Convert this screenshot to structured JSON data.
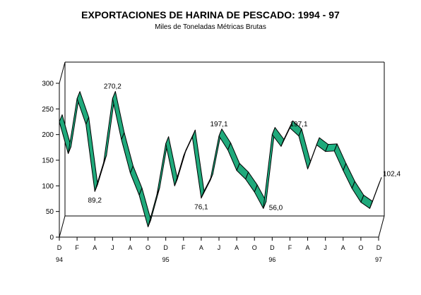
{
  "chart_data": {
    "type": "area",
    "title": "EXPORTACIONES DE HARINA DE PESCADO: 1994 - 97",
    "subtitle": "Miles de Toneladas  Métricas Brutas",
    "xlabel": "",
    "ylabel": "",
    "ylim": [
      0,
      300
    ],
    "yticks": [
      0,
      50,
      100,
      150,
      200,
      250,
      300
    ],
    "x_tick_labels": [
      "D",
      "F",
      "A",
      "J",
      "A",
      "O",
      "D",
      "F",
      "A",
      "J",
      "A",
      "O",
      "D",
      "F",
      "A",
      "J",
      "A",
      "O",
      "D"
    ],
    "year_labels": [
      "94",
      "95",
      "96",
      "97"
    ],
    "months": [
      "D 94",
      "E 95",
      "F 95",
      "M 95",
      "A 95",
      "M 95",
      "J 95",
      "J 95",
      "A 95",
      "S 95",
      "O 95",
      "N 95",
      "D 95",
      "E 96",
      "F 96",
      "M 96",
      "A 96",
      "M 96",
      "J 96",
      "J 96",
      "A 96",
      "S 96",
      "O 96",
      "N 96",
      "D 96",
      "E 97",
      "F 97",
      "M 97",
      "A 97",
      "M 97",
      "J 97",
      "J 97",
      "A 97",
      "S 97",
      "O 97",
      "N 97",
      "D 97"
    ],
    "values": [
      225,
      163,
      270,
      220,
      89.2,
      146,
      270.2,
      190,
      125,
      82,
      20,
      83,
      182,
      100,
      158,
      195,
      76.1,
      110,
      197.1,
      170,
      130,
      113,
      88,
      56.0,
      200,
      177,
      213,
      197.1,
      133,
      180,
      167,
      168,
      130,
      95,
      68,
      56,
      102.4
    ],
    "series_color": "#1DB585",
    "annotations": [
      {
        "index": 6,
        "label": "270,2"
      },
      {
        "index": 4,
        "label": "89,2"
      },
      {
        "index": 18,
        "label": "197,1"
      },
      {
        "index": 16,
        "label": "76,1"
      },
      {
        "index": 27,
        "label": "197,1"
      },
      {
        "index": 23,
        "label": "56,0"
      },
      {
        "index": 36,
        "label": "102,4"
      }
    ],
    "grid": false
  }
}
